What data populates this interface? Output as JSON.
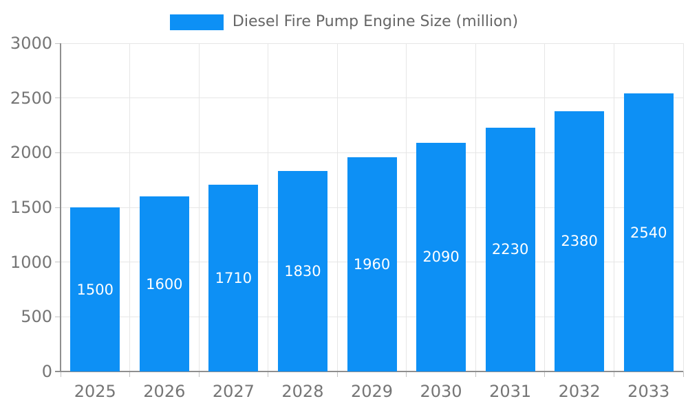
{
  "chart_data": {
    "type": "bar",
    "title": "Diesel Fire Pump Engine Size (million)",
    "legend": [
      "Diesel Fire Pump Engine Size (million)"
    ],
    "legend_position": "top",
    "categories": [
      "2025",
      "2026",
      "2027",
      "2028",
      "2029",
      "2030",
      "2031",
      "2032",
      "2033"
    ],
    "values": [
      1500,
      1600,
      1710,
      1830,
      1960,
      2090,
      2230,
      2380,
      2540
    ],
    "bar_labels": [
      "1500",
      "1600",
      "1710",
      "1830",
      "1960",
      "2090",
      "2230",
      "2380",
      "2540"
    ],
    "xlabel": "",
    "ylabel": "",
    "ylim": [
      0,
      3000
    ],
    "yticks": [
      0,
      500,
      1000,
      1500,
      2000,
      2500,
      3000
    ],
    "ytick_labels": [
      "0",
      "500",
      "1000",
      "1500",
      "2000",
      "2500",
      "3000"
    ],
    "grid": true,
    "colors": {
      "bar": "#0d90f5",
      "bar_label": "#ffffff",
      "tick_label": "#757575",
      "legend_text": "#666666",
      "gridline": "#e6e6e6",
      "axis_line": "#8f8f8f",
      "tick_mark": "#c2c2c2",
      "background": "#ffffff"
    }
  }
}
